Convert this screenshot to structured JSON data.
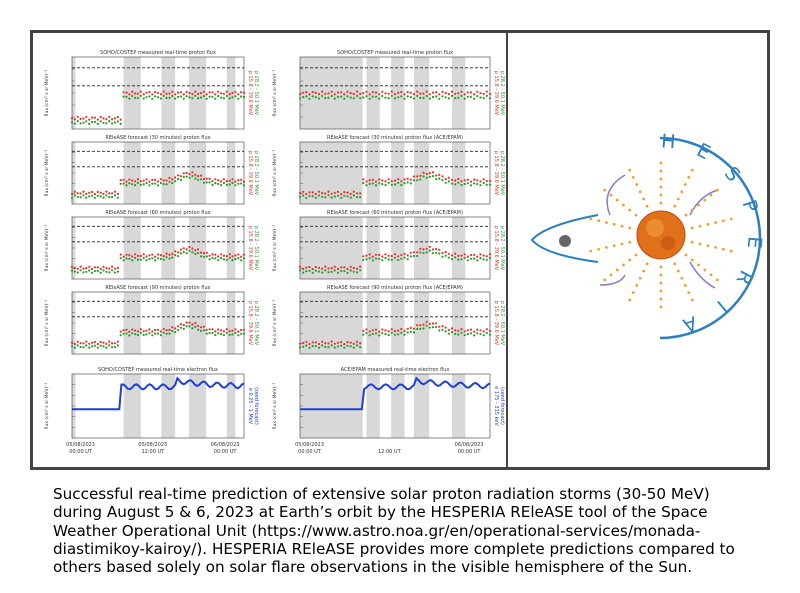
{
  "figure": {
    "panels": [
      {
        "title": "SOHO/COSTEP measured real-time proton flux",
        "kind": "proton",
        "legend": [
          "p 15.8 - 39.6 MeV",
          "p 28.2 - 50.1 MeV"
        ],
        "colors": [
          "#e8302a",
          "#2a9a2a"
        ]
      },
      {
        "title": "SOHO/COSTEP measured real-time proton flux",
        "kind": "proton",
        "legend": [
          "p 15.8 - 39.6 MeV",
          "p 28.2 - 50.1 MeV"
        ],
        "colors": [
          "#e8302a",
          "#2a9a2a"
        ]
      },
      {
        "title": "REleASE forecast (30 minutes) proton flux",
        "kind": "proton",
        "legend": [
          "p 15.8 - 39.6 MeV",
          "p 28.2 - 50.1 MeV"
        ],
        "colors": [
          "#e8302a",
          "#2a9a2a"
        ]
      },
      {
        "title": "REleASE forecast (30 minutes) proton flux (ACE/EPAM)",
        "kind": "proton",
        "legend": [
          "p 15.8 - 39.6 MeV",
          "p 28.2 - 50.1 MeV"
        ],
        "colors": [
          "#e8302a",
          "#2a9a2a"
        ]
      },
      {
        "title": "REleASE forecast (60 minutes) proton flux",
        "kind": "proton",
        "legend": [
          "p 15.8 - 39.6 MeV",
          "p 28.2 - 50.1 MeV"
        ],
        "colors": [
          "#e8302a",
          "#2a9a2a"
        ]
      },
      {
        "title": "REleASE forecast (60 minutes) proton flux (ACE/EPAM)",
        "kind": "proton",
        "legend": [
          "p 15.8 - 39.6 MeV",
          "p 28.2 - 50.1 MeV"
        ],
        "colors": [
          "#e8302a",
          "#2a9a2a"
        ]
      },
      {
        "title": "REleASE forecast (90 minutes) proton flux",
        "kind": "proton",
        "legend": [
          "p 15.8 - 39.6 MeV",
          "p 28.2 - 50.1 MeV"
        ],
        "colors": [
          "#e8302a",
          "#2a9a2a"
        ]
      },
      {
        "title": "REleASE forecast (90 minutes) proton flux (ACE/EPAM)",
        "kind": "proton",
        "legend": [
          "p 15.8 - 39.6 MeV",
          "p 28.2 - 50.1 MeV"
        ],
        "colors": [
          "#e8302a",
          "#2a9a2a"
        ]
      },
      {
        "title": "SOHO/COSTEP measured real-time electron flux",
        "kind": "electron",
        "legend": [
          "e 0.25 - 1 MeV",
          "(seed forecast)"
        ],
        "colors": [
          "#1f3fd6",
          "#1f3fd6"
        ]
      },
      {
        "title": "ACE/EPAM measured real-time electron flux",
        "kind": "electron",
        "legend": [
          "e 175 - 315 keV",
          "(seed forecast)"
        ],
        "colors": [
          "#1f3fd6",
          "#1f3fd6"
        ]
      }
    ],
    "y_label": "flux (cm² s sr MeV)⁻¹",
    "x_ticks_left": [
      [
        "05/08/2023",
        "00:00 UT"
      ],
      [
        "05/08/2023",
        "12:00 UT"
      ],
      [
        "06/08/2023",
        "00:00 UT"
      ]
    ],
    "x_ticks_right": [
      [
        "05/08/2023",
        "00:00 UT"
      ],
      [
        "",
        "12:00 UT"
      ],
      [
        "06/08/2023",
        "00:00 UT"
      ]
    ],
    "logo_letters": [
      "H",
      "E",
      "S",
      "P",
      "E",
      "R",
      "I",
      "A"
    ]
  },
  "caption": {
    "lines": [
      "Successful real-time prediction of extensive solar proton radiation storms (30-50 MeV)",
      "during August 5 & 6, 2023 at Earth’s orbit by the HESPERIA REleASE tool of the Space",
      "Weather Operational Unit (https://www.astro.noa.gr/en/operational-services/monada-",
      "diastimikoy-kairoy/). HESPERIA REleASE provides more complete predictions compared to",
      "others based solely on solar flare observations in the visible hemisphere of the Sun."
    ]
  }
}
